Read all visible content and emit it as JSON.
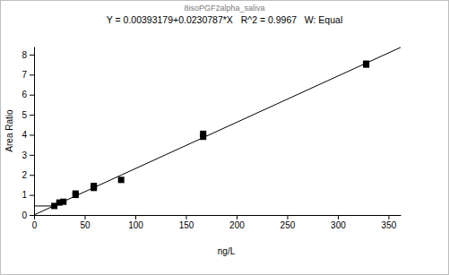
{
  "chart_data": {
    "type": "scatter",
    "title": "8isoPGF2alpha_saliva",
    "subtitle": "Y = 0.00393179+0.0230787*X   R^2 = 0.9967   W: Equal",
    "x_label": "ng/L",
    "y_label": "Area Ratio",
    "xlim": [
      0,
      362
    ],
    "ylim": [
      0,
      8.4
    ],
    "xticks": [
      0,
      50,
      100,
      150,
      200,
      250,
      300,
      350
    ],
    "yticks": [
      0,
      1,
      2,
      3,
      4,
      5,
      6,
      7,
      8
    ],
    "series": [
      {
        "type": "scatter",
        "marker": "square",
        "color": "#000000",
        "x": [
          20,
          25,
          29,
          41,
          41,
          59,
          59,
          86,
          167,
          167,
          328,
          328
        ],
        "values": [
          0.45,
          0.62,
          0.66,
          1.0,
          1.07,
          1.35,
          1.45,
          1.75,
          3.9,
          4.05,
          7.5,
          7.55
        ]
      },
      {
        "type": "line",
        "line_style": "solid",
        "color": "#000000",
        "x": [
          0,
          362
        ],
        "values": [
          0.004,
          8.36
        ]
      },
      {
        "type": "line",
        "line_style": "solid",
        "color": "#000000",
        "x": [
          0,
          20
        ],
        "values": [
          0.45,
          0.45
        ]
      }
    ]
  }
}
